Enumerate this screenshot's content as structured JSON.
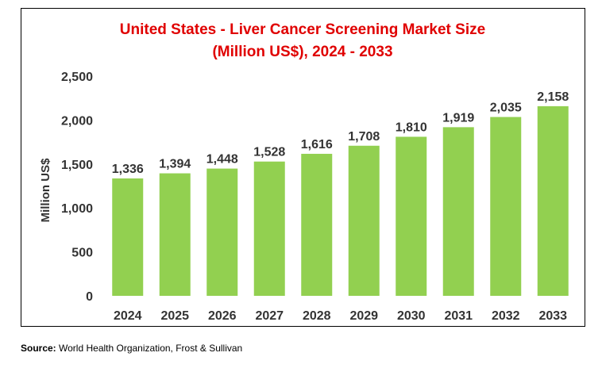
{
  "chart_data": {
    "type": "bar",
    "title_line1": "United States - Liver Cancer Screening Market Size",
    "title_line2": "(Million US$), 2024 - 2033",
    "xlabel": "",
    "ylabel": "Million US$",
    "categories": [
      "2024",
      "2025",
      "2026",
      "2027",
      "2028",
      "2029",
      "2030",
      "2031",
      "2032",
      "2033"
    ],
    "values": [
      1336,
      1394,
      1448,
      1528,
      1616,
      1708,
      1810,
      1919,
      2035,
      2158
    ],
    "value_labels": [
      "1,336",
      "1,394",
      "1,448",
      "1,528",
      "1,616",
      "1,708",
      "1,810",
      "1,919",
      "2,035",
      "2,158"
    ],
    "ylim": [
      0,
      2500
    ],
    "yticks": [
      0,
      500,
      1000,
      1500,
      2000,
      2500
    ],
    "ytick_labels": [
      "0",
      "500",
      "1,000",
      "1,500",
      "2,000",
      "2,500"
    ],
    "grid": false,
    "legend": "none",
    "bar_color": "#92d050",
    "title_color": "#e00000"
  },
  "source": {
    "label": "Source:",
    "text": " World Health Organization, Frost & Sullivan"
  }
}
